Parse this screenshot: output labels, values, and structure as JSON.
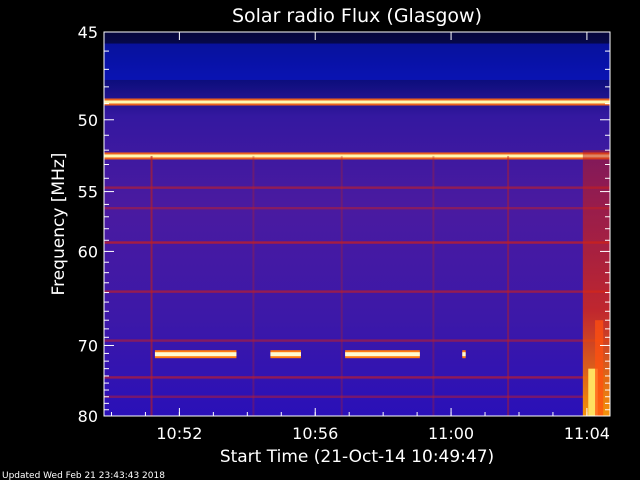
{
  "chart_data": {
    "type": "heatmap",
    "title": "Solar radio Flux (Glasgow)",
    "xlabel": "Start Time (21-Oct-14 10:49:47)",
    "ylabel": "Frequency [MHz]",
    "x_ticks": [
      "10:52",
      "10:56",
      "11:00",
      "11:04"
    ],
    "x_tick_minutes": [
      2.22,
      6.22,
      10.22,
      14.22
    ],
    "x_range_minutes": [
      0,
      14.9
    ],
    "y_ticks": [
      45,
      50,
      55,
      60,
      70,
      80
    ],
    "ylim": [
      45,
      80
    ],
    "y_scale": "reciprocal",
    "color_scale": [
      "#000033",
      "#0a0ad2",
      "#7a1aa8",
      "#d21a1a",
      "#ff8800",
      "#ffff80"
    ],
    "features": {
      "horizontal_lines_mhz": [
        {
          "f": 48.9,
          "intensity": 1.0
        },
        {
          "f": 52.4,
          "intensity": 0.95
        },
        {
          "f": 54.7,
          "intensity": 0.55
        },
        {
          "f": 56.3,
          "intensity": 0.45
        },
        {
          "f": 59.2,
          "intensity": 0.7
        },
        {
          "f": 63.9,
          "intensity": 0.6
        },
        {
          "f": 69.4,
          "intensity": 0.5
        },
        {
          "f": 74.2,
          "intensity": 0.6
        },
        {
          "f": 77.0,
          "intensity": 0.45
        }
      ],
      "interference_bursts": [
        {
          "f": 71.1,
          "start_min": 1.5,
          "end_min": 3.9
        },
        {
          "f": 71.1,
          "start_min": 4.9,
          "end_min": 5.8
        },
        {
          "f": 71.1,
          "start_min": 7.1,
          "end_min": 9.3
        },
        {
          "f": 71.1,
          "start_min": 10.55,
          "end_min": 10.65
        }
      ],
      "vertical_lines_min": [
        {
          "t": 1.4,
          "intensity": 0.6
        },
        {
          "t": 4.4,
          "intensity": 0.3
        },
        {
          "t": 7.0,
          "intensity": 0.3
        },
        {
          "t": 9.7,
          "intensity": 0.3
        },
        {
          "t": 11.9,
          "intensity": 0.45
        }
      ],
      "radio_burst": {
        "start_min": 14.1,
        "end_min": 14.9,
        "f_low": 52,
        "f_high": 80
      }
    }
  },
  "footer": {
    "updated": "Updated Wed Feb 21 23:43:43 2018"
  }
}
